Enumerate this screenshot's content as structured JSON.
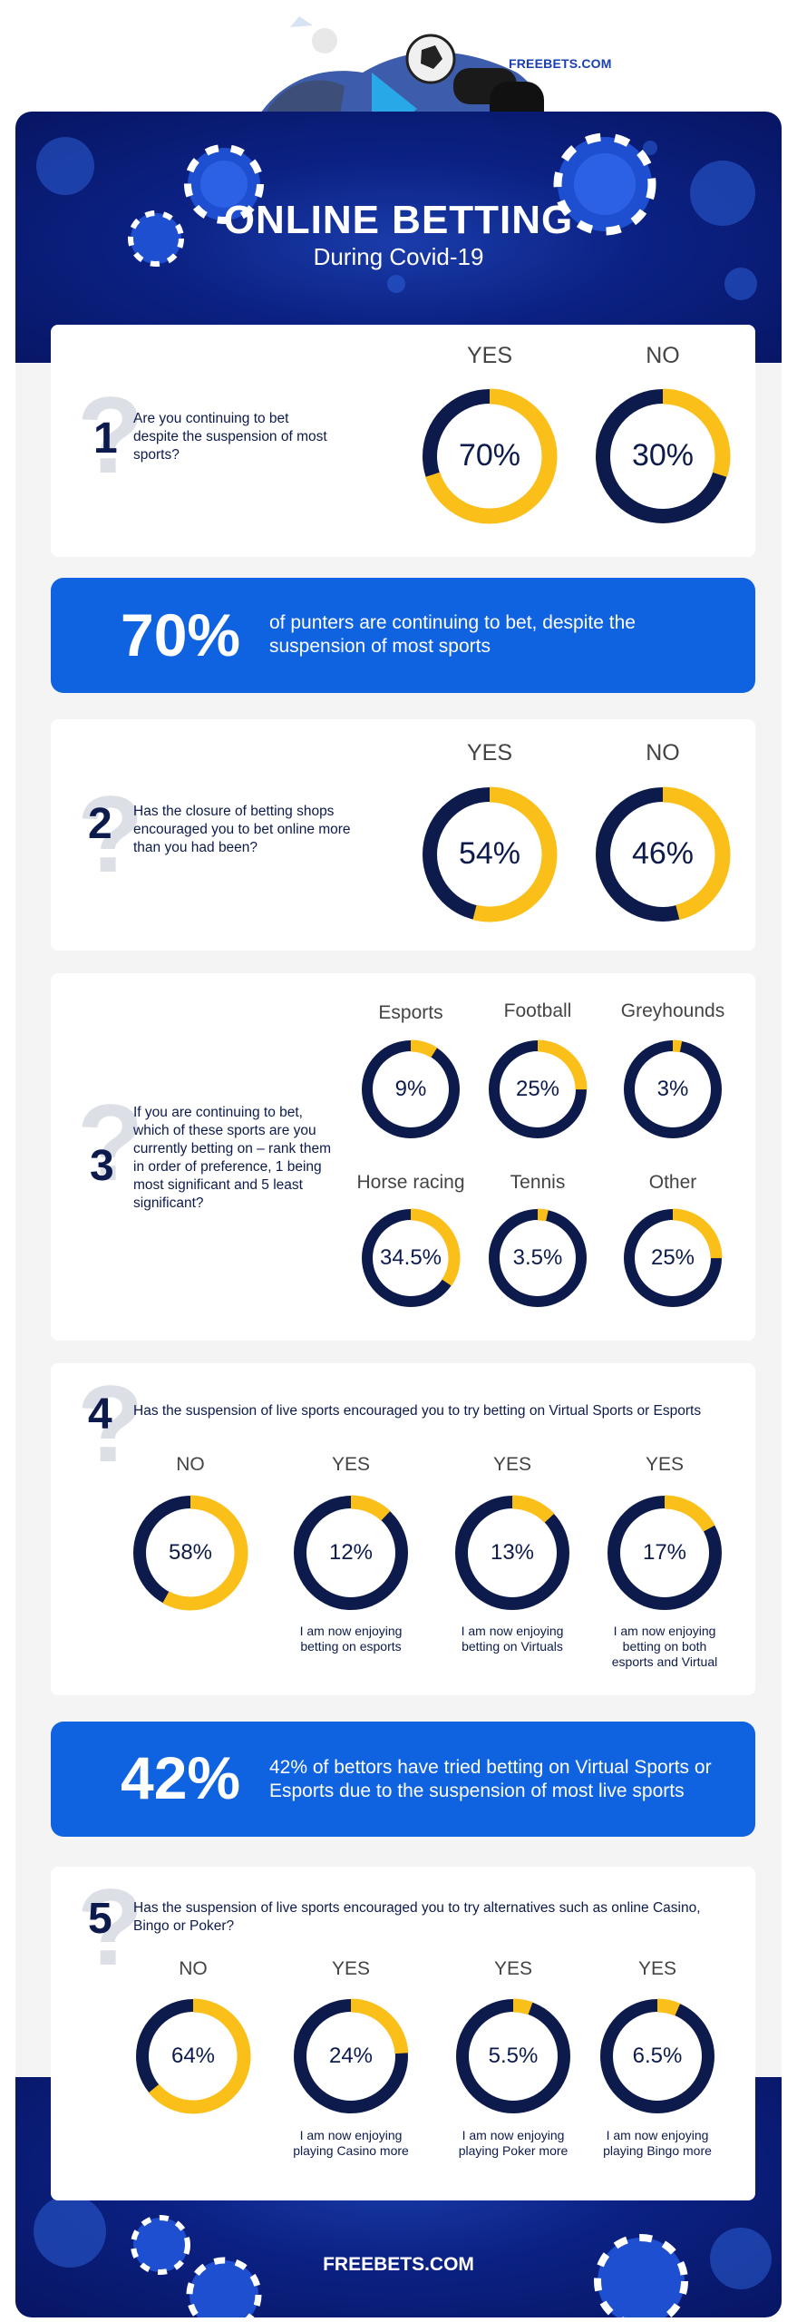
{
  "brand": {
    "top": "FREEBETS.COM",
    "bottom": "FREEBETS.COM"
  },
  "header": {
    "title": "ONLINE BETTING",
    "subtitle": "During Covid-19"
  },
  "colors": {
    "navy": "#0d1b4c",
    "yellow": "#fbbf1a",
    "blue": "#0f62e0",
    "light": "#f4f4f4"
  },
  "q1": {
    "number": "1",
    "question": "Are you continuing to bet despite the suspension of most sports?",
    "answers": [
      {
        "label": "YES",
        "pct": "70%",
        "value": 70
      },
      {
        "label": "NO",
        "pct": "30%",
        "value": 30
      }
    ]
  },
  "banner1": {
    "big": "70%",
    "text": "of punters are continuing to bet, despite the suspension of most sports"
  },
  "q2": {
    "number": "2",
    "question": "Has the closure of betting shops encouraged you to bet online more than you had been?",
    "answers": [
      {
        "label": "YES",
        "pct": "54%",
        "value": 54
      },
      {
        "label": "NO",
        "pct": "46%",
        "value": 46
      }
    ]
  },
  "q3": {
    "number": "3",
    "question": "If you are continuing to bet, which of these sports are you currently betting on – rank them in order of preference, 1 being most significant and 5 least significant?",
    "answers": [
      {
        "label": "Esports",
        "pct": "9%",
        "value": 9
      },
      {
        "label": "Football",
        "pct": "25%",
        "value": 25
      },
      {
        "label": "Greyhounds",
        "pct": "3%",
        "value": 3
      },
      {
        "label": "Horse racing",
        "pct": "34.5%",
        "value": 34.5
      },
      {
        "label": "Tennis",
        "pct": "3.5%",
        "value": 3.5
      },
      {
        "label": "Other",
        "pct": "25%",
        "value": 25
      }
    ]
  },
  "q4": {
    "number": "4",
    "question": "Has the suspension of live sports encouraged you to try betting on Virtual Sports or Esports",
    "answers": [
      {
        "label": "NO",
        "pct": "58%",
        "value": 58,
        "caption": ""
      },
      {
        "label": "YES",
        "pct": "12%",
        "value": 12,
        "caption": "I am now enjoying betting on esports"
      },
      {
        "label": "YES",
        "pct": "13%",
        "value": 13,
        "caption": "I am now enjoying betting on Virtuals"
      },
      {
        "label": "YES",
        "pct": "17%",
        "value": 17,
        "caption": "I am now enjoying betting on both esports and Virtual"
      }
    ]
  },
  "banner2": {
    "big": "42%",
    "text": "42% of bettors have tried betting on Virtual Sports or Esports due to the suspension of most live sports"
  },
  "q5": {
    "number": "5",
    "question": "Has the suspension of live sports encouraged you to try alternatives such as online Casino, Bingo or Poker?",
    "answers": [
      {
        "label": "NO",
        "pct": "64%",
        "value": 64,
        "caption": ""
      },
      {
        "label": "YES",
        "pct": "24%",
        "value": 24,
        "caption": "I am now enjoying playing Casino more"
      },
      {
        "label": "YES",
        "pct": "5.5%",
        "value": 5.5,
        "caption": "I am now enjoying playing Poker more"
      },
      {
        "label": "YES",
        "pct": "6.5%",
        "value": 6.5,
        "caption": "I am now enjoying playing Bingo more"
      }
    ]
  }
}
